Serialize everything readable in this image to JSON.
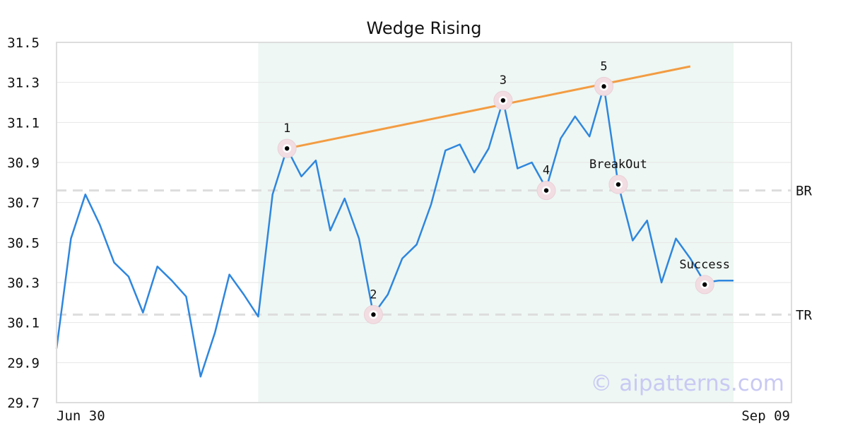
{
  "chart_data": {
    "type": "line",
    "title": "Wedge Rising",
    "x_start_label": "Jun 30",
    "x_end_label": "Sep 09",
    "ylim": [
      29.7,
      31.5
    ],
    "yticks": [
      "29.7",
      "29.9",
      "30.1",
      "30.3",
      "30.5",
      "30.7",
      "30.9",
      "31.1",
      "31.3",
      "31.5"
    ],
    "grid": true,
    "watermark": "© aipatterns.com",
    "series": [
      {
        "color": "#2e86de",
        "values": [
          29.97,
          30.52,
          30.74,
          30.59,
          30.4,
          30.33,
          30.15,
          30.38,
          30.31,
          30.23,
          29.83,
          30.05,
          30.34,
          30.24,
          30.13,
          30.74,
          30.97,
          30.83,
          30.91,
          30.56,
          30.72,
          30.52,
          30.14,
          30.24,
          30.42,
          30.49,
          30.69,
          30.96,
          30.99,
          30.85,
          30.97,
          31.21,
          30.87,
          30.9,
          30.77,
          31.02,
          31.13,
          31.03,
          31.28,
          30.79,
          30.51,
          30.61,
          30.3,
          30.52,
          30.42,
          30.3,
          30.31,
          30.31
        ]
      }
    ],
    "pattern_region": {
      "start_index": 14,
      "end_index": 47,
      "color": "#eef7f3"
    },
    "trend_line": {
      "from_index": 16,
      "from_value": 30.97,
      "to_index": 44,
      "to_value": 31.38,
      "color": "#f39c42"
    },
    "reference_lines": [
      {
        "label": "BR",
        "value": 30.76,
        "color": "#dddddd"
      },
      {
        "label": "TR",
        "value": 30.14,
        "color": "#dddddd"
      }
    ],
    "points": [
      {
        "label": "1",
        "index": 16,
        "value": 30.97,
        "label_pos": "above"
      },
      {
        "label": "2",
        "index": 22,
        "value": 30.14,
        "label_pos": "above"
      },
      {
        "label": "3",
        "index": 31,
        "value": 31.21,
        "label_pos": "above"
      },
      {
        "label": "4",
        "index": 34,
        "value": 30.76,
        "label_pos": "above"
      },
      {
        "label": "5",
        "index": 38,
        "value": 31.28,
        "label_pos": "above"
      },
      {
        "label": "BreakOut",
        "index": 39,
        "value": 30.79,
        "label_pos": "above"
      },
      {
        "label": "Success",
        "index": 45,
        "value": 30.29,
        "label_pos": "above"
      }
    ]
  }
}
